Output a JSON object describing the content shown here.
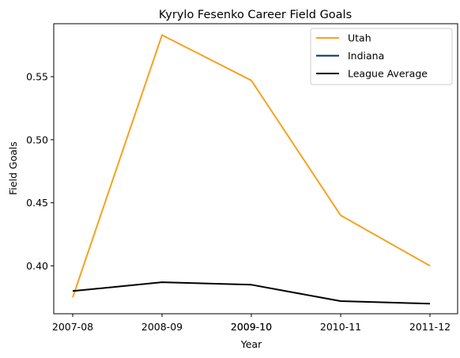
{
  "chart_data": {
    "type": "line",
    "title": "Kyrylo Fesenko Career Field Goals",
    "xlabel": "Year",
    "ylabel": "Field Goals",
    "x_tick_labels": [
      "2007-08",
      "2008-09",
      "2009-10",
      "2009-10",
      "2010-11",
      "2011-12"
    ],
    "ylim": [
      0.362,
      0.592
    ],
    "y_ticks": [
      0.4,
      0.45,
      0.5,
      0.55
    ],
    "grid": false,
    "legend_position": "upper right",
    "series": [
      {
        "name": "Utah",
        "color": "#F5A21F",
        "points": [
          [
            0,
            0.375
          ],
          [
            1,
            0.583
          ],
          [
            2,
            0.547
          ],
          [
            3,
            0.44
          ],
          [
            4,
            0.4
          ]
        ]
      },
      {
        "name": "Indiana",
        "color": "#002D62",
        "points": []
      },
      {
        "name": "League Average",
        "color": "#000000",
        "points": [
          [
            0,
            0.38
          ],
          [
            1,
            0.387
          ],
          [
            2,
            0.385
          ],
          [
            3,
            0.372
          ],
          [
            4,
            0.37
          ]
        ]
      }
    ]
  }
}
